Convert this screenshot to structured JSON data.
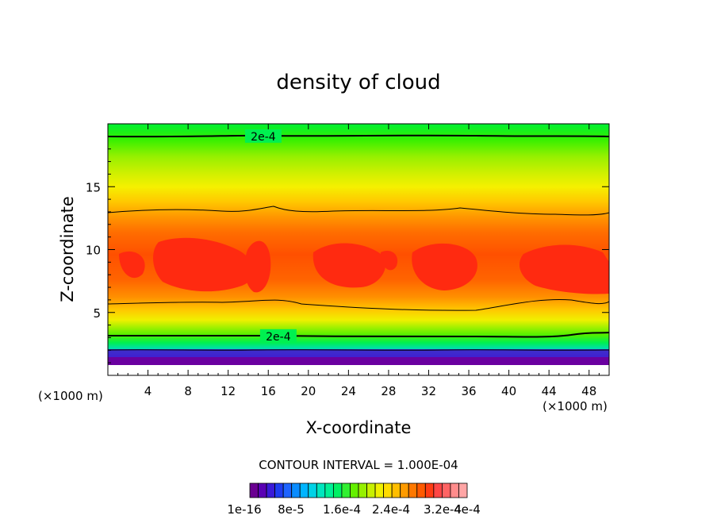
{
  "chart_data": {
    "type": "heatmap",
    "title": "density of cloud",
    "xlabel": "X-coordinate",
    "ylabel": "Z-coordinate",
    "x_unit": "(×1000 m)",
    "z_unit": "(×1000 m)",
    "xlim": [
      0,
      50
    ],
    "ylim": [
      0,
      20
    ],
    "x_ticks": [
      4,
      8,
      12,
      16,
      20,
      24,
      28,
      32,
      36,
      40,
      44,
      48
    ],
    "y_ticks": [
      5,
      10,
      15
    ],
    "contour_interval_text": "CONTOUR INTERVAL = 1.000E-04",
    "contour_labels": [
      {
        "text": "2e-4",
        "x": 15.5,
        "z": 19.0
      },
      {
        "text": "2e-4",
        "x": 17.0,
        "z": 3.1
      }
    ],
    "colorbar": {
      "tick_labels": [
        "1e-16",
        "8e-5",
        "1.6e-4",
        "2.4e-4",
        "3.2e-4",
        "4e-4"
      ],
      "colors": [
        "#6a0091",
        "#5a00b4",
        "#3a1ad8",
        "#1e3cf0",
        "#1e64ff",
        "#0a8cff",
        "#00b4ff",
        "#00d2e6",
        "#00e6be",
        "#00f096",
        "#00f064",
        "#32f032",
        "#64f000",
        "#96f000",
        "#c8f000",
        "#f0f000",
        "#ffdc00",
        "#ffbe00",
        "#ff9b00",
        "#ff7800",
        "#ff5a00",
        "#ff3c14",
        "#ff4646",
        "#ff6464",
        "#ff8c8c",
        "#ffa5a5"
      ]
    }
  }
}
